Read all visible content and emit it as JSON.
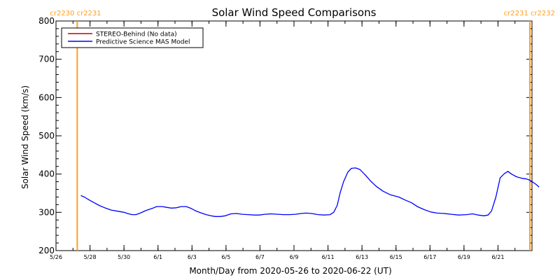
{
  "chart_data": {
    "type": "line",
    "title": "Solar Wind Speed Comparisons",
    "xlabel": "Month/Day from 2020-05-26 to 2020-06-22 (UT)",
    "ylabel": "Solar Wind Speed (km/s)",
    "ylim": [
      200,
      800
    ],
    "yticks": [
      200,
      300,
      400,
      500,
      600,
      700,
      800
    ],
    "xlim": [
      "2020-05-26",
      "2020-06-23"
    ],
    "xtick_dates": [
      "2020-05-26",
      "2020-05-28",
      "2020-05-30",
      "2020-06-01",
      "2020-06-03",
      "2020-06-05",
      "2020-06-07",
      "2020-06-09",
      "2020-06-11",
      "2020-06-13",
      "2020-06-15",
      "2020-06-17",
      "2020-06-19",
      "2020-06-21"
    ],
    "xtick_labels": [
      "5/26",
      "5/28",
      "5/30",
      "6/1",
      "6/3",
      "6/5",
      "6/7",
      "6/9",
      "6/11",
      "6/13",
      "6/15",
      "6/17",
      "6/19",
      "6/21"
    ],
    "grid": false,
    "legend_position": "top-left",
    "carrington_markers": [
      {
        "date": "2020-05-27 06:00",
        "label": "cr2230 cr2231",
        "side": "left",
        "color": "#ff9f1c"
      },
      {
        "date": "2020-06-22 21:00",
        "label": "cr2231 cr2232",
        "side": "right",
        "color": "#ff9f1c"
      }
    ],
    "series": [
      {
        "name": "STEREO-Behind (No data)",
        "color": "#c80000",
        "points": []
      },
      {
        "name": "Predictive Science MAS Model",
        "color": "#0000ff",
        "points": [
          [
            "2020-05-27 11:00",
            344
          ],
          [
            "2020-05-27 16:00",
            340
          ],
          [
            "2020-05-27 23:00",
            332
          ],
          [
            "2020-05-28 05:00",
            326
          ],
          [
            "2020-05-28 13:00",
            318
          ],
          [
            "2020-05-28 22:00",
            311
          ],
          [
            "2020-05-29 06:00",
            306
          ],
          [
            "2020-05-29 15:00",
            303
          ],
          [
            "2020-05-30 00:00",
            300
          ],
          [
            "2020-05-30 05:00",
            297
          ],
          [
            "2020-05-30 11:00",
            294
          ],
          [
            "2020-05-30 17:00",
            294
          ],
          [
            "2020-05-30 23:00",
            298
          ],
          [
            "2020-05-31 06:00",
            304
          ],
          [
            "2020-05-31 17:00",
            311
          ],
          [
            "2020-05-31 22:00",
            315
          ],
          [
            "2020-06-01 06:00",
            315
          ],
          [
            "2020-06-01 12:00",
            313
          ],
          [
            "2020-06-01 19:00",
            311
          ],
          [
            "2020-06-02 02:00",
            312
          ],
          [
            "2020-06-02 09:00",
            315
          ],
          [
            "2020-06-02 16:00",
            315
          ],
          [
            "2020-06-02 23:00",
            310
          ],
          [
            "2020-06-03 05:00",
            304
          ],
          [
            "2020-06-03 12:00",
            299
          ],
          [
            "2020-06-03 20:00",
            294
          ],
          [
            "2020-06-04 03:00",
            291
          ],
          [
            "2020-06-04 09:00",
            289
          ],
          [
            "2020-06-04 16:00",
            289
          ],
          [
            "2020-06-04 23:00",
            291
          ],
          [
            "2020-06-05 07:00",
            296
          ],
          [
            "2020-06-05 15:00",
            297
          ],
          [
            "2020-06-05 23:00",
            295
          ],
          [
            "2020-06-06 07:00",
            294
          ],
          [
            "2020-06-06 16:00",
            293
          ],
          [
            "2020-06-06 23:00",
            293
          ],
          [
            "2020-06-07 07:00",
            295
          ],
          [
            "2020-06-07 16:00",
            296
          ],
          [
            "2020-06-08 01:00",
            295
          ],
          [
            "2020-06-08 09:00",
            294
          ],
          [
            "2020-06-08 18:00",
            294
          ],
          [
            "2020-06-09 02:00",
            295
          ],
          [
            "2020-06-09 10:00",
            297
          ],
          [
            "2020-06-09 17:00",
            298
          ],
          [
            "2020-06-10 01:00",
            297
          ],
          [
            "2020-06-10 10:00",
            294
          ],
          [
            "2020-06-10 19:00",
            293
          ],
          [
            "2020-06-11 03:00",
            294
          ],
          [
            "2020-06-11 08:00",
            300
          ],
          [
            "2020-06-11 13:00",
            318
          ],
          [
            "2020-06-11 17:00",
            350
          ],
          [
            "2020-06-11 22:00",
            380
          ],
          [
            "2020-06-12 04:00",
            405
          ],
          [
            "2020-06-12 09:00",
            415
          ],
          [
            "2020-06-12 15:00",
            416
          ],
          [
            "2020-06-12 21:00",
            412
          ],
          [
            "2020-06-13 05:00",
            397
          ],
          [
            "2020-06-13 12:00",
            382
          ],
          [
            "2020-06-13 20:00",
            368
          ],
          [
            "2020-06-14 06:00",
            355
          ],
          [
            "2020-06-14 16:00",
            346
          ],
          [
            "2020-06-15 04:00",
            340
          ],
          [
            "2020-06-15 13:00",
            332
          ],
          [
            "2020-06-15 22:00",
            325
          ],
          [
            "2020-06-16 06:00",
            315
          ],
          [
            "2020-06-16 16:00",
            307
          ],
          [
            "2020-06-17 01:00",
            301
          ],
          [
            "2020-06-17 10:00",
            298
          ],
          [
            "2020-06-17 20:00",
            297
          ],
          [
            "2020-06-18 06:00",
            295
          ],
          [
            "2020-06-18 16:00",
            293
          ],
          [
            "2020-06-19 04:00",
            294
          ],
          [
            "2020-06-19 12:00",
            296
          ],
          [
            "2020-06-19 20:00",
            293
          ],
          [
            "2020-06-20 04:00",
            291
          ],
          [
            "2020-06-20 10:00",
            293
          ],
          [
            "2020-06-20 15:00",
            304
          ],
          [
            "2020-06-20 21:00",
            340
          ],
          [
            "2020-06-21 03:00",
            390
          ],
          [
            "2020-06-21 09:00",
            401
          ],
          [
            "2020-06-21 14:00",
            407
          ],
          [
            "2020-06-21 19:00",
            400
          ],
          [
            "2020-06-22 02:00",
            393
          ],
          [
            "2020-06-22 10:00",
            389
          ],
          [
            "2020-06-22 17:00",
            387
          ],
          [
            "2020-06-22 22:00",
            383
          ],
          [
            "2020-06-23 05:00",
            374
          ],
          [
            "2020-06-23 10:00",
            366
          ]
        ]
      }
    ]
  }
}
